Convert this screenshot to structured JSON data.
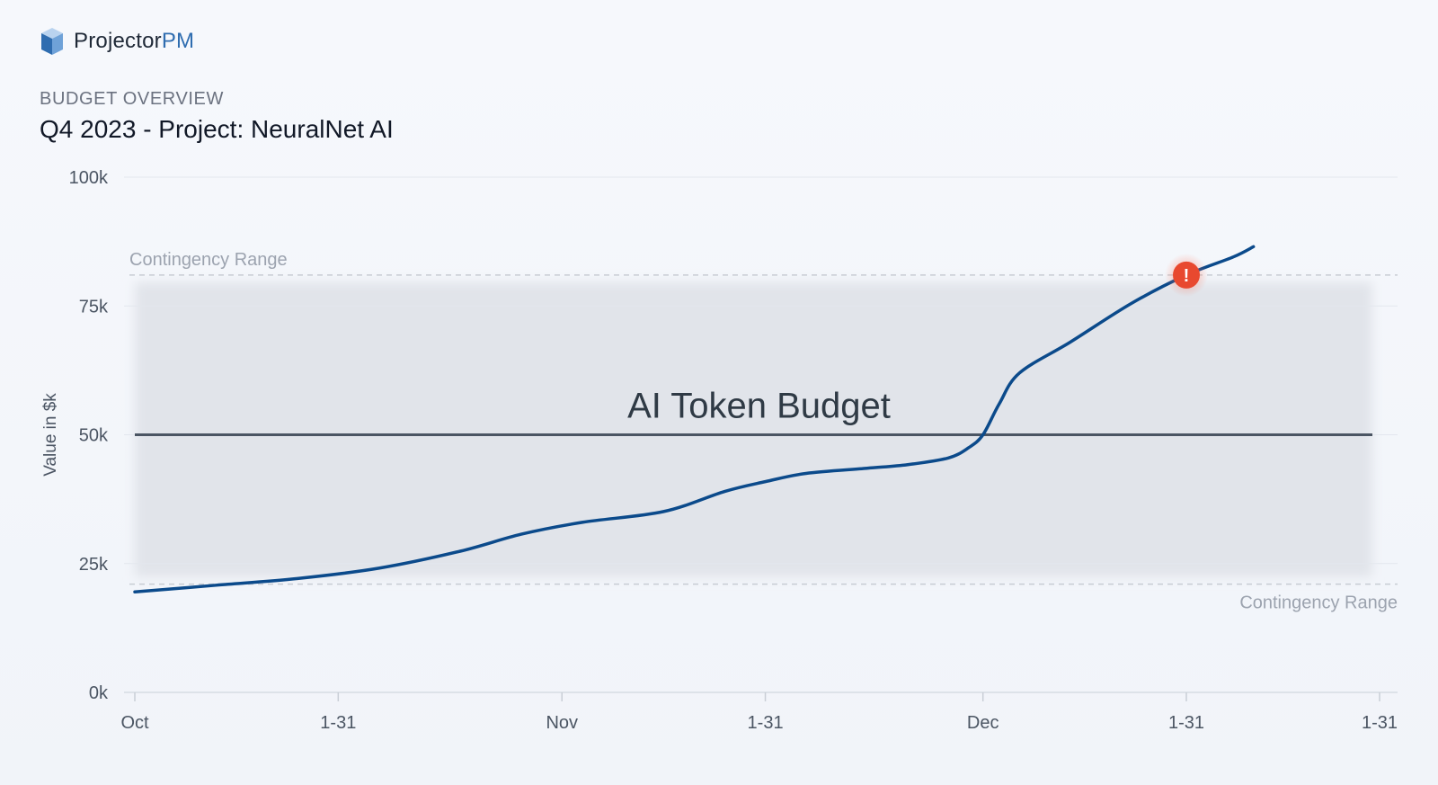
{
  "brand": {
    "name_main": "Projector",
    "name_accent": "PM"
  },
  "header": {
    "overview": "BUDGET OVERVIEW",
    "title": "Q4 2023 - Project: NeuralNet AI"
  },
  "chart_data": {
    "type": "line",
    "title": "Q4 2023 - Project: NeuralNet AI",
    "xlabel": "",
    "ylabel": "Value in $k",
    "ylim": [
      0,
      100
    ],
    "y_ticks": [
      0,
      25,
      50,
      75,
      100
    ],
    "y_tick_labels": [
      "0k",
      "25k",
      "50k",
      "75k",
      "100k"
    ],
    "x_tick_labels": [
      "Oct",
      "1-31",
      "Nov",
      "1-31",
      "Dec",
      "1-31",
      "1-31"
    ],
    "x_ticks": [
      0,
      1,
      2.1,
      3.1,
      4.17,
      5.17,
      6.12
    ],
    "grid": true,
    "series": [
      {
        "name": "",
        "color": "#0b4a8b",
        "x": [
          0,
          0.4,
          0.8,
          1.2,
          1.6,
          1.9,
          2.2,
          2.6,
          2.9,
          3.1,
          3.3,
          3.6,
          3.8,
          4.0,
          4.1,
          4.17,
          4.25,
          4.35,
          4.6,
          4.9,
          5.17,
          5.4,
          5.5
        ],
        "y": [
          19.5,
          20.8,
          22.1,
          24.1,
          27.4,
          30.7,
          33.0,
          35.1,
          39.0,
          40.9,
          42.5,
          43.5,
          44.2,
          45.5,
          47.5,
          50.0,
          56.0,
          62.0,
          68.0,
          75.5,
          81.0,
          84.5,
          86.5
        ]
      }
    ],
    "reference_lines": [
      {
        "label": "AI Token Budget",
        "y": 50,
        "color": "#4b5563"
      },
      {
        "label": "Contingency Range",
        "y": 81,
        "color": "#c7ccd3"
      },
      {
        "label": "Contingency Range",
        "y": 21,
        "color": "#c7ccd3"
      }
    ],
    "band": {
      "y_range": [
        21,
        81
      ],
      "color": "#e1e4ea"
    },
    "alert_marker": {
      "x": 5.17,
      "y": 81,
      "symbol": "!",
      "color": "#e8492f"
    }
  }
}
